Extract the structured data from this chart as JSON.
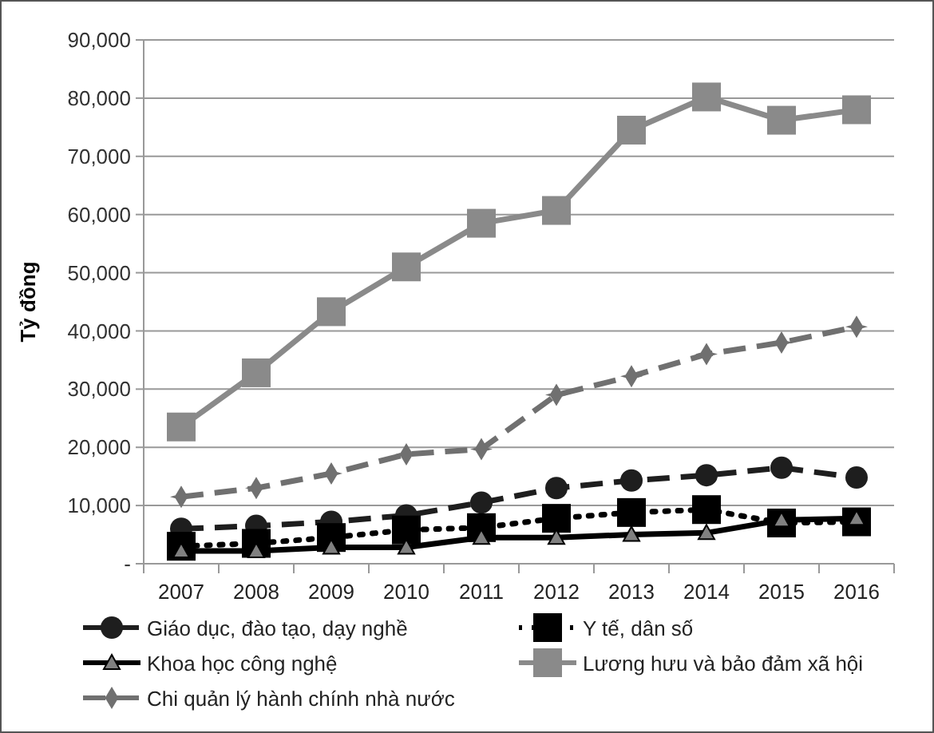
{
  "chart_data": {
    "type": "line",
    "ylabel": "Tỷ đồng",
    "categories": [
      "2007",
      "2008",
      "2009",
      "2010",
      "2011",
      "2012",
      "2013",
      "2014",
      "2015",
      "2016"
    ],
    "series": [
      {
        "name": "Giáo dục, đào tạo, dạy nghề",
        "color": "#1e1e1e",
        "marker": "circle",
        "line_style": "dashed",
        "values": [
          6000,
          6500,
          7200,
          8300,
          10500,
          13000,
          14300,
          15200,
          16500,
          14800
        ]
      },
      {
        "name": "Y tế, dân số",
        "color": "#000000",
        "marker": "square",
        "line_style": "dotted",
        "values": [
          3000,
          3500,
          4500,
          5800,
          6200,
          7800,
          8800,
          9300,
          7000,
          7200
        ]
      },
      {
        "name": "Khoa học công nghệ",
        "color": "#000000",
        "marker": "triangle",
        "line_style": "solid",
        "values": [
          2200,
          2200,
          2800,
          2800,
          4500,
          4500,
          5000,
          5300,
          7500,
          7800
        ]
      },
      {
        "name": "Lương hưu và bảo đảm xã hội",
        "color": "#8a8a8a",
        "marker": "square",
        "line_style": "solid",
        "values": [
          23500,
          32800,
          43300,
          51000,
          58500,
          60700,
          74500,
          80200,
          76200,
          78000
        ]
      },
      {
        "name": "Chi quản lý hành chính nhà nước",
        "color": "#707070",
        "marker": "diamond",
        "line_style": "dashed",
        "values": [
          11500,
          13000,
          15500,
          18800,
          19700,
          29000,
          32200,
          36000,
          38000,
          40700
        ]
      }
    ],
    "ylim": [
      0,
      90000
    ],
    "yticks": [
      {
        "value": 0,
        "label": "-"
      },
      {
        "value": 10000,
        "label": "10,000"
      },
      {
        "value": 20000,
        "label": "20,000"
      },
      {
        "value": 30000,
        "label": "30,000"
      },
      {
        "value": 40000,
        "label": "40,000"
      },
      {
        "value": 50000,
        "label": "50,000"
      },
      {
        "value": 60000,
        "label": "60,000"
      },
      {
        "value": 70000,
        "label": "70,000"
      },
      {
        "value": 80000,
        "label": "80,000"
      },
      {
        "value": 90000,
        "label": "90,000"
      }
    ],
    "grid": "y",
    "legend": "bottom"
  }
}
